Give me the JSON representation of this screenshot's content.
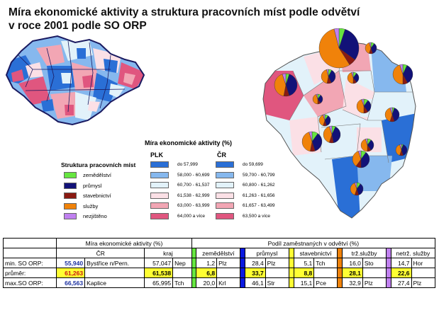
{
  "title": {
    "line1": "Míra ekonomické aktivity a struktura pracovních míst podle odvětví",
    "line2": "v roce 2001 podle SO ORP"
  },
  "legend": {
    "title": "Míra ekonomické aktivity (%)",
    "plk_label": "PLK",
    "cr_label": "ČR",
    "plk": [
      {
        "label": "do 57,999",
        "color": "#2a6fd6"
      },
      {
        "label": "58,000 - 60,699",
        "color": "#86b8ee"
      },
      {
        "label": "60,700 - 61,537",
        "color": "#e2f2fa"
      },
      {
        "label": "61,538 - 62,999",
        "color": "#fbe0e6"
      },
      {
        "label": "63,000 - 63,999",
        "color": "#f2a6b4"
      },
      {
        "label": "64,000 a více",
        "color": "#e0567f"
      }
    ],
    "cr": [
      {
        "label": "do 59,699",
        "color": "#2a6fd6"
      },
      {
        "label": "59,700 - 60,799",
        "color": "#86b8ee"
      },
      {
        "label": "60,800 - 61,262",
        "color": "#e2f2fa"
      },
      {
        "label": "61,263 - 61,656",
        "color": "#fbe0e6"
      },
      {
        "label": "61,657 - 63,499",
        "color": "#f2a6b4"
      },
      {
        "label": "63,500 a více",
        "color": "#e0567f"
      }
    ]
  },
  "structure": {
    "title": "Struktura pracovních míst",
    "items": [
      {
        "label": "zemědělství",
        "color": "#66e640"
      },
      {
        "label": "průmysl",
        "color": "#121278"
      },
      {
        "label": "stavebnictví",
        "color": "#8a1a12"
      },
      {
        "label": "služby",
        "color": "#f0820a"
      },
      {
        "label": "nezjištěno",
        "color": "#c080f0"
      }
    ]
  },
  "table": {
    "header1": {
      "mira": "Míra ekonomické aktivity (%)",
      "podil": "Podíl zaměstnaných v odvětví (%)"
    },
    "header2": {
      "cr": "ČR",
      "kraj": "kraj",
      "zem": "zemědělství",
      "prum": "průmysl",
      "stav": "stavebnictví",
      "trz": "trž.služby",
      "netrz": "netrž. služby"
    },
    "colors": {
      "zem": "#66e640",
      "prum": "#0a1ae0",
      "stav": "#ffff33",
      "trz": "#f0820a",
      "netrz": "#c080f0"
    },
    "rows": [
      {
        "label": "min. SO ORP:",
        "cr_val": "55,940",
        "cr_name": "Bystřice n/Pern.",
        "kraj_val": "57,047",
        "kraj_name": "Nep",
        "zem_val": "1,2",
        "zem_name": "Plz",
        "prum_val": "28,4",
        "prum_name": "Plz",
        "stav_val": "5,1",
        "stav_name": "Tch",
        "trz_val": "16,0",
        "trz_name": "Sto",
        "netrz_val": "14,7",
        "netrz_name": "Hor"
      },
      {
        "label": "průměr:",
        "cr_val": "61,263",
        "cr_name": "",
        "kraj_val": "61,538",
        "kraj_name": "",
        "zem_val": "6,8",
        "zem_name": "",
        "prum_val": "33,7",
        "prum_name": "",
        "stav_val": "8,8",
        "stav_name": "",
        "trz_val": "28,1",
        "trz_name": "",
        "netrz_val": "22,6",
        "netrz_name": ""
      },
      {
        "label": "max.SO ORP:",
        "cr_val": "66,563",
        "cr_name": "Kaplice",
        "kraj_val": "65,995",
        "kraj_name": "Tch",
        "zem_val": "20,0",
        "zem_name": "Krl",
        "prum_val": "46,1",
        "prum_name": "Str",
        "stav_val": "15,1",
        "stav_name": "Pce",
        "trz_val": "32,9",
        "trz_name": "Plz",
        "netrz_val": "27,4",
        "netrz_name": "Plz"
      }
    ]
  }
}
